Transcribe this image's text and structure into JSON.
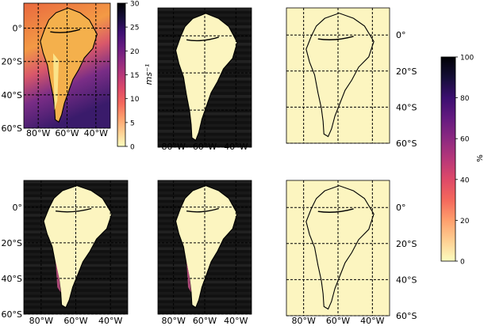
{
  "chart_data": [
    {
      "type": "heatmap",
      "panel": "wind-speed-map",
      "colorbar": {
        "label": "ms⁻¹",
        "ticks": [
          0,
          5,
          10,
          15,
          20,
          25,
          30
        ],
        "range": [
          0,
          30
        ],
        "colormap": "magma_r"
      },
      "x_ticks": [
        "80°W",
        "60°W",
        "40°W"
      ],
      "y_ticks": [
        "0°",
        "20°S",
        "40°S",
        "60°S"
      ],
      "lon_range": [
        -90,
        -30
      ],
      "lat_range": [
        -60,
        15
      ]
    },
    {
      "type": "heatmap",
      "panel": "map-top-middle",
      "x_ticks": [
        "80°W",
        "60°W",
        "40°W"
      ]
    },
    {
      "type": "heatmap",
      "panel": "map-top-right",
      "y_ticks": [
        "0°",
        "20°S",
        "40°S",
        "60°S"
      ]
    },
    {
      "type": "heatmap",
      "panel": "map-bottom-left",
      "x_ticks": [
        "80°W",
        "60°W",
        "40°W"
      ],
      "y_ticks": [
        "0°",
        "20°S",
        "40°S",
        "60°S"
      ]
    },
    {
      "type": "heatmap",
      "panel": "map-bottom-middle",
      "x_ticks": [
        "80°W",
        "60°W",
        "40°W"
      ]
    },
    {
      "type": "heatmap",
      "panel": "map-bottom-right",
      "x_ticks": [
        "80°W",
        "60°W",
        "40°W"
      ],
      "y_ticks": [
        "0°",
        "20°S",
        "40°S",
        "60°S"
      ]
    },
    {
      "type": "heatmap",
      "panel": "percent-colorbar",
      "colorbar": {
        "label": "%",
        "ticks": [
          0,
          20,
          40,
          60,
          80,
          100
        ],
        "range": [
          0,
          100
        ],
        "colormap": "magma_r"
      }
    }
  ],
  "colors": {
    "land": "#fcf5c0",
    "ocean_dark": "#111111",
    "coast": "#000000",
    "magma": [
      "#fcfdbf",
      "#fecf92",
      "#fe9f6d",
      "#f4685c",
      "#de4968",
      "#b73779",
      "#8c2981",
      "#641a80",
      "#3b0f70",
      "#150e37",
      "#000004"
    ]
  }
}
